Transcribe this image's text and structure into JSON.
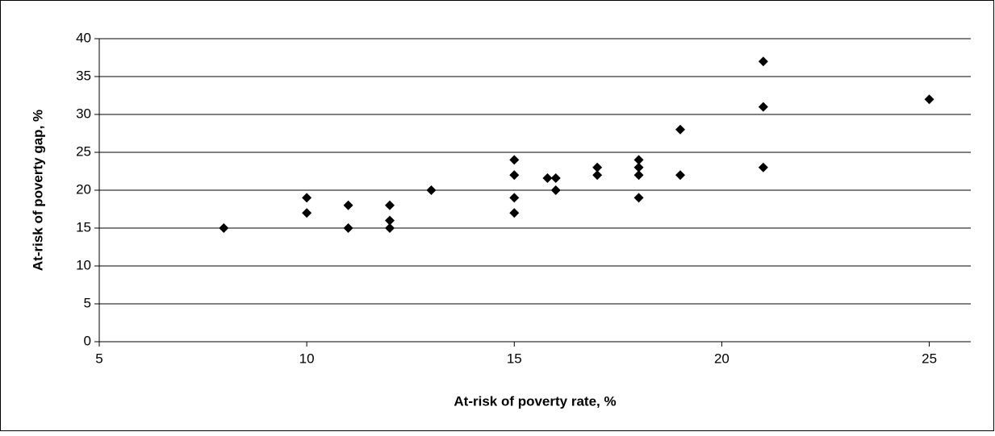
{
  "chart_data": {
    "type": "scatter",
    "x_label": "At-risk of poverty rate, %",
    "y_label": "At-risk of poverty gap, %",
    "x": [
      8,
      10,
      10,
      11,
      11,
      12,
      12,
      12,
      13,
      15,
      15,
      15,
      15,
      15.8,
      16,
      16,
      17,
      17,
      18,
      18,
      18,
      18,
      19,
      19,
      21,
      21,
      21,
      25
    ],
    "values": [
      15,
      19,
      17,
      18,
      15,
      18,
      16,
      15,
      20,
      24,
      22,
      19,
      17,
      21.6,
      21.6,
      20,
      23,
      22,
      24,
      23,
      22,
      19,
      28,
      22,
      37,
      31,
      23,
      32
    ],
    "color": "#000000",
    "xlim": [
      5,
      26
    ],
    "xticks": [
      5,
      10,
      15,
      20,
      25
    ],
    "ylim": [
      0,
      40
    ],
    "yticks": [
      0,
      5,
      10,
      15,
      20,
      25,
      30,
      35,
      40
    ],
    "grid": true
  }
}
